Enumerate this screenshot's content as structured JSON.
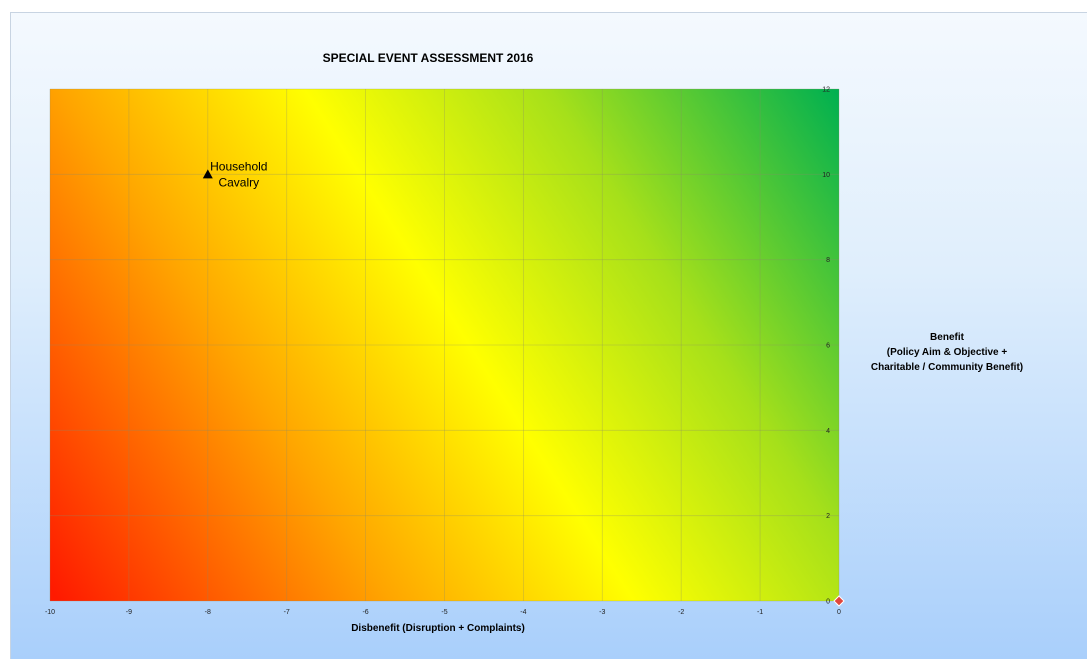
{
  "chart_data": {
    "type": "scatter",
    "title": "SPECIAL EVENT ASSESSMENT 2016",
    "xlabel": "Disbenefit (Disruption + Complaints)",
    "ylabel": [
      "Benefit",
      "(Policy Aim & Objective +",
      "Charitable / Community Benefit)"
    ],
    "xlim": [
      -10,
      0
    ],
    "ylim": [
      0,
      12
    ],
    "x_ticks": [
      -10,
      -9,
      -8,
      -7,
      -6,
      -5,
      -4,
      -3,
      -2,
      -1,
      0
    ],
    "y_ticks": [
      0,
      2,
      4,
      6,
      8,
      10,
      12
    ],
    "grid": true,
    "background": "diagonal gradient: red (low benefit, high disbenefit) through yellow to green (high benefit, low disbenefit)",
    "colors": {
      "red": "#ff1a00",
      "orange": "#ffa500",
      "yellow": "#ffff00",
      "light_green": "#a6e01a",
      "green": "#00b050",
      "marker": "#000000",
      "origin_marker": "#e0463c"
    },
    "points": [
      {
        "x": -8,
        "y": 10,
        "label": [
          "Household",
          "Cavalry"
        ],
        "marker": "triangle"
      },
      {
        "x": 0,
        "y": 0,
        "label": [],
        "marker": "diamond"
      }
    ]
  }
}
